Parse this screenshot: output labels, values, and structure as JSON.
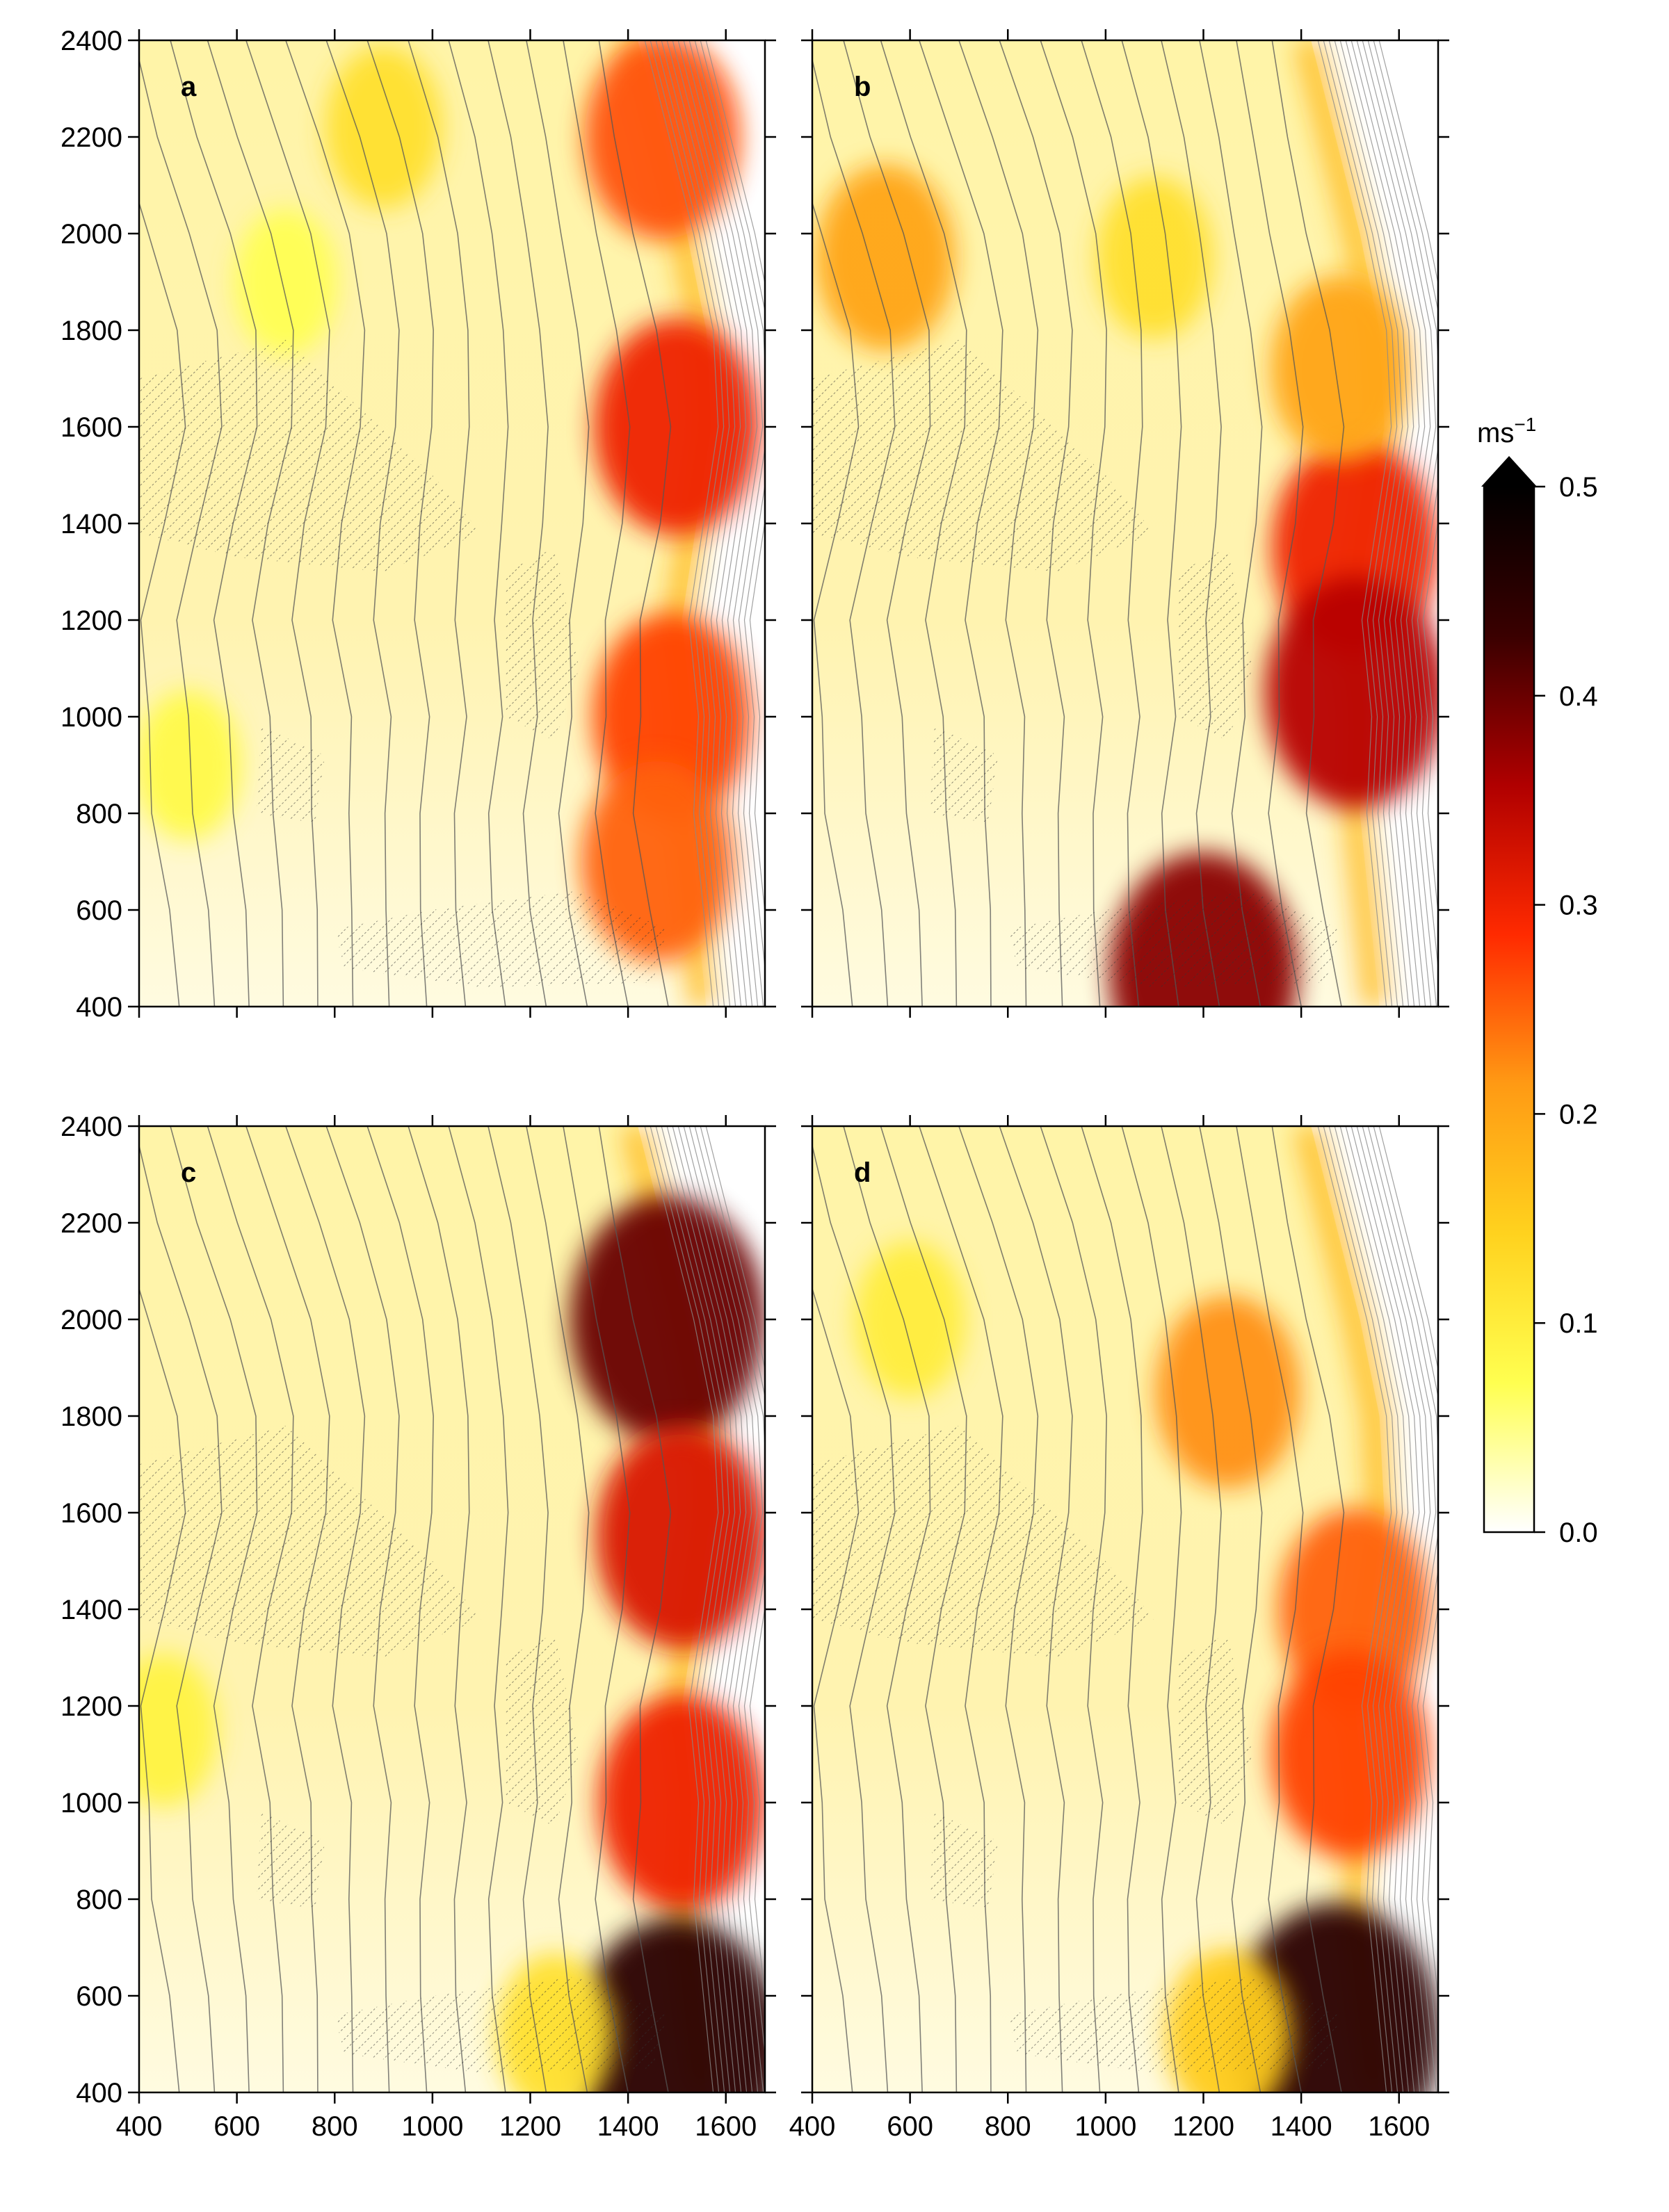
{
  "figure": {
    "colorbar": {
      "unit_label": "ms",
      "unit_exponent": "−1",
      "ticks": [
        "0.0",
        "0.1",
        "0.2",
        "0.3",
        "0.4",
        "0.5"
      ],
      "range": [
        0.0,
        0.5
      ],
      "extend": "max",
      "colors": [
        "#ffffff",
        "#ffff50",
        "#ffd21e",
        "#ff9a14",
        "#ff2a00",
        "#b00000",
        "#3a0000",
        "#000000"
      ]
    },
    "contour_color": "#555555",
    "hatch_color": "#333333"
  },
  "chart_data": [
    {
      "type": "heatmap",
      "panel": "a",
      "xlim": [
        400,
        1680
      ],
      "ylim": [
        400,
        2400
      ],
      "xticks": [
        "400",
        "600",
        "800",
        "1000",
        "1200",
        "1400",
        "1600"
      ],
      "yticks": [
        "400",
        "600",
        "800",
        "1000",
        "1200",
        "1400",
        "1600",
        "1800",
        "2000",
        "2200",
        "2400"
      ],
      "show_xticklabels": false,
      "show_yticklabels": true,
      "features": [
        {
          "x": 1500,
          "y": 1600,
          "v": 0.3
        },
        {
          "x": 1490,
          "y": 1000,
          "v": 0.27
        },
        {
          "x": 1470,
          "y": 2200,
          "v": 0.26
        },
        {
          "x": 1460,
          "y": 700,
          "v": 0.25
        },
        {
          "x": 900,
          "y": 2220,
          "v": 0.12
        },
        {
          "x": 500,
          "y": 900,
          "v": 0.08
        },
        {
          "x": 700,
          "y": 1900,
          "v": 0.07
        }
      ]
    },
    {
      "type": "heatmap",
      "panel": "b",
      "xlim": [
        400,
        1680
      ],
      "ylim": [
        400,
        2400
      ],
      "xticks": [
        "400",
        "600",
        "800",
        "1000",
        "1200",
        "1400",
        "1600"
      ],
      "yticks": [
        "400",
        "600",
        "800",
        "1000",
        "1200",
        "1400",
        "1600",
        "1800",
        "2000",
        "2200",
        "2400"
      ],
      "show_xticklabels": false,
      "show_yticklabels": false,
      "features": [
        {
          "x": 1200,
          "y": 470,
          "v": 0.38
        },
        {
          "x": 1510,
          "y": 1350,
          "v": 0.3
        },
        {
          "x": 1510,
          "y": 1050,
          "v": 0.35
        },
        {
          "x": 550,
          "y": 1950,
          "v": 0.2
        },
        {
          "x": 1100,
          "y": 1950,
          "v": 0.12
        },
        {
          "x": 1480,
          "y": 1720,
          "v": 0.2
        }
      ]
    },
    {
      "type": "heatmap",
      "panel": "c",
      "xlim": [
        400,
        1680
      ],
      "ylim": [
        400,
        2400
      ],
      "xticks": [
        "400",
        "600",
        "800",
        "1000",
        "1200",
        "1400",
        "1600"
      ],
      "yticks": [
        "400",
        "600",
        "800",
        "1000",
        "1200",
        "1400",
        "1600",
        "1800",
        "2000",
        "2200",
        "2400"
      ],
      "show_xticklabels": true,
      "show_yticklabels": true,
      "features": [
        {
          "x": 1480,
          "y": 2000,
          "v": 0.4
        },
        {
          "x": 1510,
          "y": 1550,
          "v": 0.32
        },
        {
          "x": 1510,
          "y": 1000,
          "v": 0.3
        },
        {
          "x": 1500,
          "y": 490,
          "v": 0.45
        },
        {
          "x": 1250,
          "y": 520,
          "v": 0.12
        },
        {
          "x": 450,
          "y": 1150,
          "v": 0.09
        }
      ]
    },
    {
      "type": "heatmap",
      "panel": "d",
      "xlim": [
        400,
        1680
      ],
      "ylim": [
        400,
        2400
      ],
      "xticks": [
        "400",
        "600",
        "800",
        "1000",
        "1200",
        "1400",
        "1600"
      ],
      "yticks": [
        "400",
        "600",
        "800",
        "1000",
        "1200",
        "1400",
        "1600",
        "1800",
        "2000",
        "2200",
        "2400"
      ],
      "show_xticklabels": true,
      "show_yticklabels": false,
      "features": [
        {
          "x": 1250,
          "y": 1850,
          "v": 0.22
        },
        {
          "x": 1510,
          "y": 1400,
          "v": 0.25
        },
        {
          "x": 1500,
          "y": 1100,
          "v": 0.27
        },
        {
          "x": 1470,
          "y": 520,
          "v": 0.45
        },
        {
          "x": 1250,
          "y": 520,
          "v": 0.15
        },
        {
          "x": 600,
          "y": 2000,
          "v": 0.1
        }
      ]
    }
  ]
}
